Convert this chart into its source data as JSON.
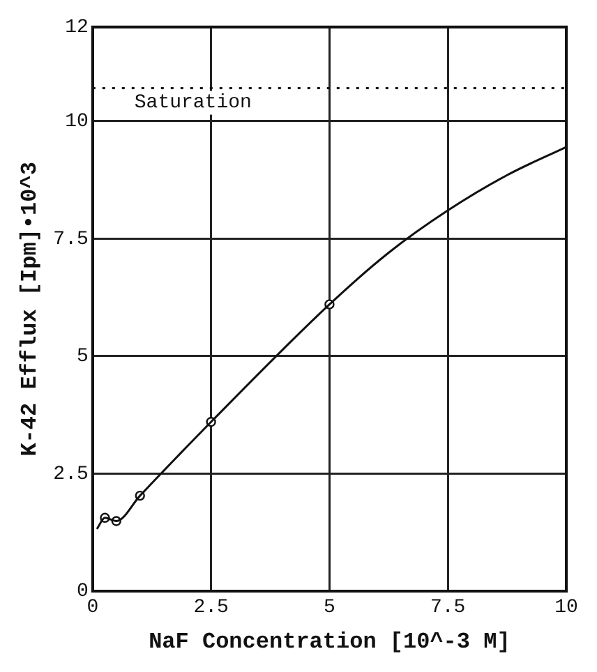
{
  "chart_data": {
    "type": "line",
    "xlabel": "NaF Concentration [10^-3 M]",
    "ylabel": "K-42 Efflux [Ipm]•10^3",
    "series": [
      {
        "color": "#111111",
        "marker": "none",
        "x": [
          0.09,
          0.26,
          0.5,
          1,
          2.5,
          5,
          6.25,
          7.5,
          8.75,
          10
        ],
        "values": [
          1.32,
          1.56,
          1.49,
          2.03,
          3.6,
          6.1,
          7.2,
          8.1,
          8.85,
          9.45
        ]
      },
      {
        "type": "scatter",
        "color": "#111111",
        "marker": "circle",
        "x": [
          0.26,
          0.5,
          1,
          2.5,
          5
        ],
        "values": [
          1.56,
          1.49,
          2.03,
          3.6,
          6.1
        ]
      }
    ],
    "xlim": [
      0,
      10
    ],
    "xticks": [
      0,
      2.5,
      5,
      7.5,
      10
    ],
    "ylim": [
      0,
      12
    ],
    "yticks": [
      0,
      2.5,
      5,
      7.5,
      10,
      12
    ],
    "grid": true,
    "ref_lines": [
      {
        "axis": "y",
        "value": 10.7,
        "label": "Saturation",
        "line_style": "dotted"
      }
    ]
  }
}
